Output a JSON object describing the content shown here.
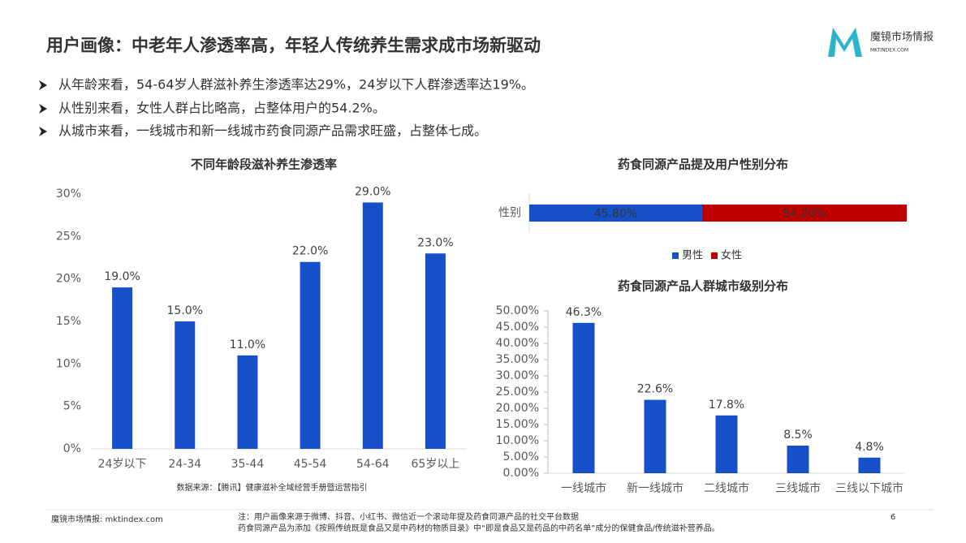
{
  "title": "用户画像：中老年人渗透率高，年轻人传统养生需求成市场新驱动",
  "logo": {
    "name": "魔镜市场情报",
    "url": "MKTINDEX.COM"
  },
  "bullets": [
    "从年龄来看，54-64岁人群滋补养生渗透率达29%，24岁以下人群渗透率达19%。",
    "从性别来看，女性人群占比略高，占整体用户的54.2%。",
    "从城市来看，一线城市和新一线城市药食同源产品需求旺盛，占整体七成。"
  ],
  "chart_data": [
    {
      "type": "bar",
      "title": "不同年龄段滋补养生渗透率",
      "categories": [
        "24岁以下",
        "24-34",
        "35-44",
        "45-54",
        "54-64",
        "65岁以上"
      ],
      "values": [
        19,
        15,
        11,
        22,
        29,
        23
      ],
      "value_labels": [
        "19.0%",
        "15.0%",
        "11.0%",
        "22.0%",
        "29.0%",
        "23.0%"
      ],
      "color": "#1550c8",
      "ylim": [
        0,
        30
      ],
      "yticks": [
        {
          "value": 0,
          "label": "0%"
        },
        {
          "value": 5,
          "label": "5%"
        },
        {
          "value": 10,
          "label": "10%"
        },
        {
          "value": 15,
          "label": "15%"
        },
        {
          "value": 20,
          "label": "20%"
        },
        {
          "value": 25,
          "label": "25%"
        },
        {
          "value": 30,
          "label": "30%"
        }
      ],
      "grid": false,
      "source": "数据来源：【腾讯】健康滋补全域经营手册暨运营指引"
    },
    {
      "type": "hbar",
      "title": "药食同源产品提及用户性别分布",
      "categories": [
        "性别"
      ],
      "series": [
        {
          "name": "男性",
          "color": "#1550c8",
          "values": [
            45.8
          ],
          "value_labels": [
            "45.80%"
          ]
        },
        {
          "name": "女性",
          "color": "#c00000",
          "values": [
            54.2
          ],
          "value_labels": [
            "54.20%"
          ]
        }
      ],
      "xlim": [
        0,
        100
      ],
      "stacked": true,
      "legend": "bottom"
    },
    {
      "type": "bar",
      "title": "药食同源产品人群城市级别分布",
      "categories": [
        "一线城市",
        "新一线城市",
        "二线城市",
        "三线城市",
        "三线以下城市"
      ],
      "values": [
        46.3,
        22.6,
        17.8,
        8.5,
        4.8
      ],
      "value_labels": [
        "46.3%",
        "22.6%",
        "17.8%",
        "8.5%",
        "4.8%"
      ],
      "color": "#1550c8",
      "ylim": [
        0,
        50
      ],
      "yticks": [
        {
          "value": 0,
          "label": "0.00%"
        },
        {
          "value": 5,
          "label": "5.00%"
        },
        {
          "value": 10,
          "label": "10.00%"
        },
        {
          "value": 15,
          "label": "15.00%"
        },
        {
          "value": 20,
          "label": "20.00%"
        },
        {
          "value": 25,
          "label": "25.00%"
        },
        {
          "value": 30,
          "label": "30.00%"
        },
        {
          "value": 35,
          "label": "35.00%"
        },
        {
          "value": 40,
          "label": "40.00%"
        },
        {
          "value": 45,
          "label": "45.00%"
        },
        {
          "value": 50,
          "label": "50.00%"
        }
      ],
      "grid": false
    }
  ],
  "footer": {
    "site": "魔镜市场情报: mktindex.com",
    "notes": [
      "注：用户画像来源于微博、抖音、小红书、微信近一个滚动年提及药食同源产品的社交平台数据",
      "药食同源产品为添加《按照传统既是食品又是中药材的物质目录》中“即是食品又是药品的中药名单”成分的保健食品/传统滋补营养品。"
    ],
    "page": "6"
  }
}
